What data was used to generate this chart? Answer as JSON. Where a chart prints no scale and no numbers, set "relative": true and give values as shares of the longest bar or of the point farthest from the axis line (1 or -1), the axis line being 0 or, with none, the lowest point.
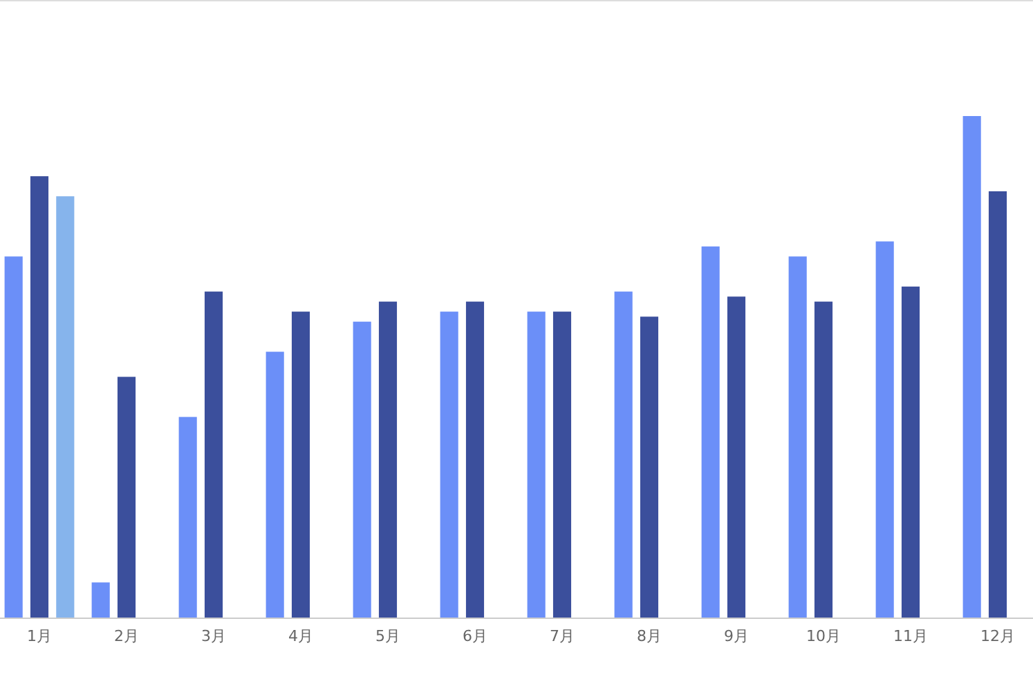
{
  "chart_data": {
    "type": "bar",
    "relative": true,
    "categories": [
      "1月",
      "2月",
      "3月",
      "4月",
      "5月",
      "6月",
      "7月",
      "8月",
      "9月",
      "10月",
      "11月",
      "12月"
    ],
    "series": [
      {
        "color": "#6b8ff8",
        "values": [
          0.72,
          0.07,
          0.4,
          0.53,
          0.59,
          0.61,
          0.61,
          0.65,
          0.74,
          0.72,
          0.75,
          1
        ]
      },
      {
        "color": "#3b4f9c",
        "values": [
          0.88,
          0.48,
          0.65,
          0.61,
          0.63,
          0.63,
          0.61,
          0.6,
          0.64,
          0.63,
          0.66,
          0.85
        ]
      },
      {
        "color": "#86b4ec",
        "values": [
          0.84,
          null,
          null,
          null,
          null,
          null,
          null,
          null,
          null,
          null,
          null,
          null
        ]
      }
    ]
  }
}
